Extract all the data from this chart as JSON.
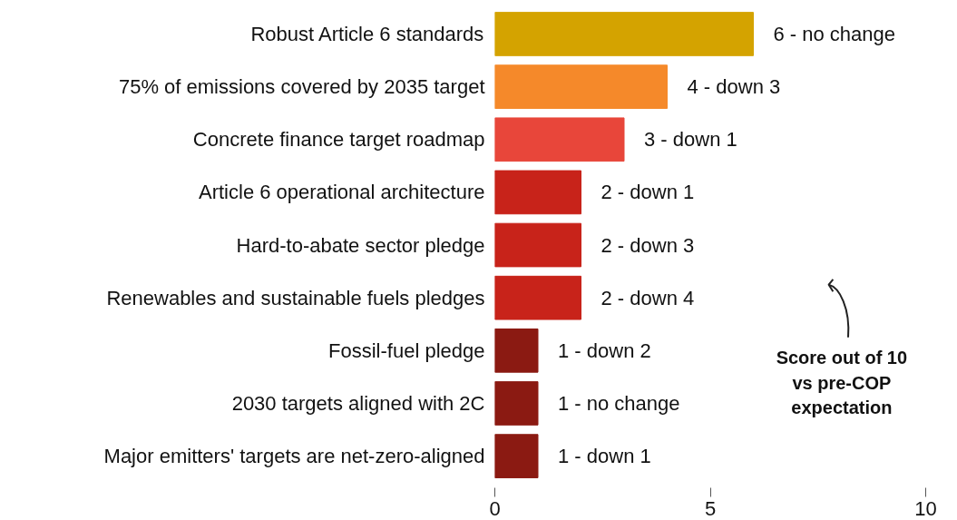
{
  "chart_data": {
    "type": "bar",
    "orientation": "horizontal",
    "categories": [
      "Robust Article 6 standards",
      "75% of emissions covered by 2035 target",
      "Concrete finance target roadmap",
      "Article 6 operational architecture",
      "Hard-to-abate sector pledge",
      "Renewables and sustainable fuels pledges",
      "Fossil-fuel pledge",
      "2030 targets aligned with 2C",
      "Major emitters' targets are net-zero-aligned"
    ],
    "values": [
      6,
      4,
      3,
      2,
      2,
      2,
      1,
      1,
      1
    ],
    "colors": [
      "#d4a300",
      "#f5892a",
      "#e8463a",
      "#c8231a",
      "#c8231a",
      "#c8231a",
      "#8b1a12",
      "#8b1a12",
      "#8b1a12"
    ],
    "value_labels": [
      "6 - no change",
      "4 - down 3",
      "3 - down 1",
      "2 - down 1",
      "2 - down 3",
      "2 - down 4",
      "1 - down 2",
      "1 - no change",
      "1 - down 1"
    ],
    "xlim": [
      0,
      10
    ],
    "xticks": [
      0,
      5,
      10
    ],
    "grid": false,
    "annotations": [
      "Score out of 10\nvs pre-COP\nexpectation"
    ]
  }
}
